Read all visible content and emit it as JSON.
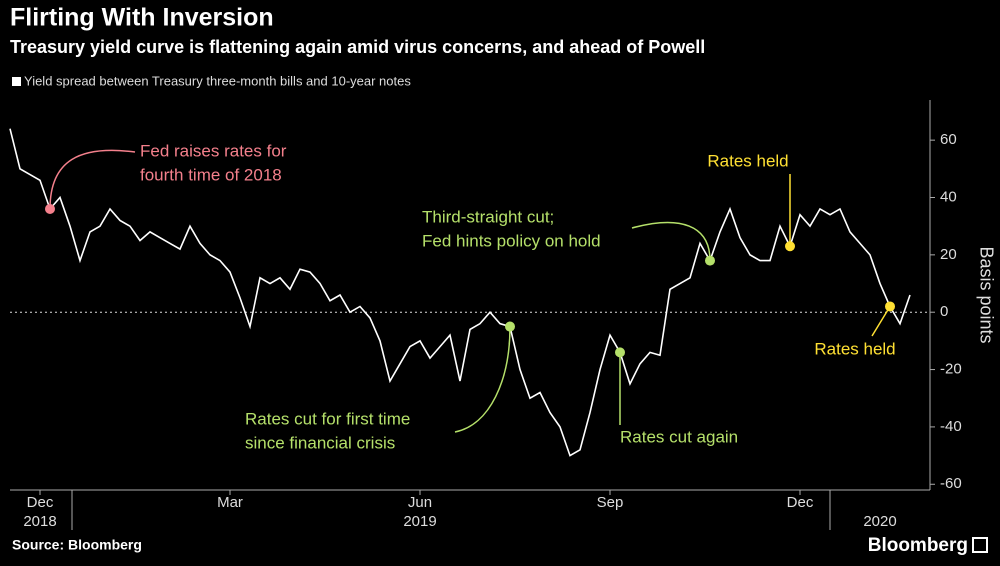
{
  "chart_data": {
    "type": "line",
    "title": "Flirting With Inversion",
    "subtitle": "Treasury yield curve is flattening again amid virus concerns, and ahead of Powell",
    "legend_label": "Yield spread between Treasury three-month bills and 10-year notes",
    "y_axis_label": "Basis points",
    "source": "Source: Bloomberg",
    "brand": "Bloomberg",
    "color": "#ffffff",
    "ylim": [
      -62,
      74
    ],
    "yticks": [
      60,
      40,
      20,
      0,
      -20,
      -40,
      -60
    ],
    "zero_line": true,
    "categories": [
      null,
      null,
      null,
      "Dec",
      null,
      null,
      null,
      null,
      null,
      null,
      null,
      null,
      null,
      null,
      null,
      null,
      null,
      null,
      null,
      null,
      null,
      null,
      "Mar",
      null,
      null,
      null,
      null,
      null,
      null,
      null,
      null,
      null,
      null,
      null,
      null,
      null,
      null,
      null,
      null,
      null,
      null,
      "Jun",
      null,
      null,
      null,
      null,
      null,
      null,
      null,
      null,
      null,
      null,
      null,
      null,
      null,
      null,
      null,
      null,
      null,
      null,
      "Sep",
      null,
      null,
      null,
      null,
      null,
      null,
      null,
      null,
      null,
      null,
      null,
      null,
      null,
      null,
      null,
      null,
      null,
      null,
      "Dec",
      null,
      null,
      null,
      null,
      null,
      null,
      null,
      null,
      null,
      null,
      null
    ],
    "years": [
      {
        "label": "2018",
        "index": 3
      },
      {
        "label": "2019",
        "index": 41
      },
      {
        "label": "2020",
        "index": 87
      }
    ],
    "values": [
      64,
      50,
      48,
      46,
      36,
      40,
      30,
      18,
      28,
      30,
      36,
      32,
      30,
      25,
      28,
      26,
      24,
      22,
      30,
      24,
      20,
      18,
      14,
      5,
      -5,
      12,
      10,
      12,
      8,
      15,
      14,
      10,
      4,
      6,
      0,
      2,
      -2,
      -10,
      -24,
      -18,
      -12,
      -10,
      -16,
      -12,
      -8,
      -24,
      -6,
      -4,
      0,
      -4,
      -5,
      -20,
      -30,
      -28,
      -35,
      -40,
      -50,
      -48,
      -35,
      -20,
      -8,
      -14,
      -25,
      -18,
      -14,
      -15,
      8,
      10,
      12,
      24,
      18,
      28,
      36,
      26,
      20,
      18,
      18,
      30,
      23,
      34,
      30,
      36,
      34,
      36,
      28,
      24,
      20,
      10,
      2,
      -4,
      6
    ],
    "annotations": [
      {
        "lines": [
          "Fed raises rates for",
          "fourth time of 2018"
        ],
        "color": "#f4808c",
        "index": 4
      },
      {
        "lines": [
          "Rates cut for first time",
          "since financial crisis"
        ],
        "color": "#b5e06a",
        "index": 50
      },
      {
        "lines": [
          "Rates cut again"
        ],
        "color": "#b5e06a",
        "index": 61
      },
      {
        "lines": [
          "Third-straight cut;",
          "Fed hints policy on hold"
        ],
        "color": "#b5e06a",
        "index": 70
      },
      {
        "lines": [
          "Rates held"
        ],
        "color": "#ffe033",
        "index": 78
      },
      {
        "lines": [
          "Rates held"
        ],
        "color": "#ffe033",
        "index": 88
      }
    ]
  }
}
